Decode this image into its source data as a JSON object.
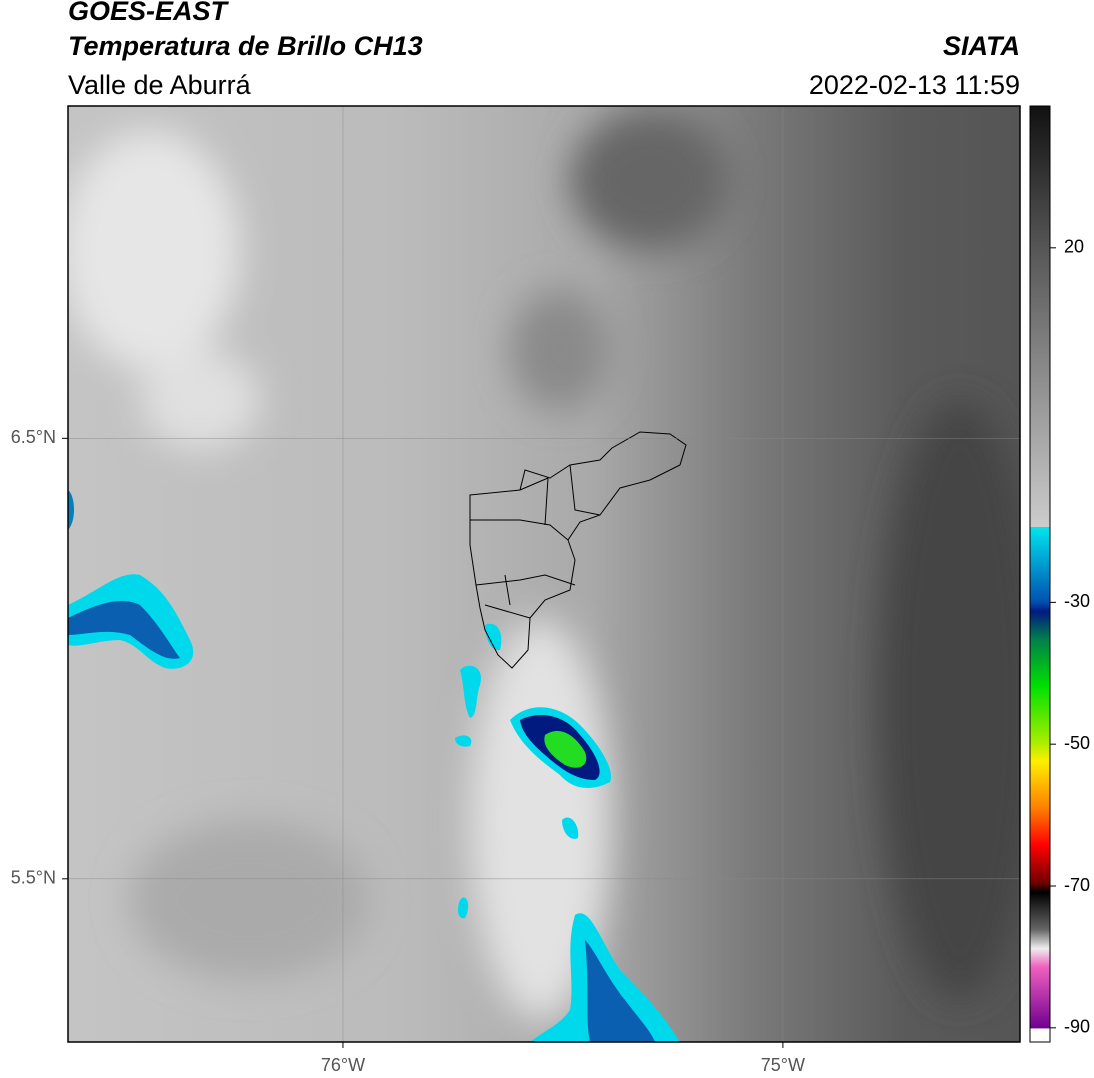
{
  "header": {
    "title": "GOES-EAST",
    "subtitle": "Temperatura de Brillo CH13",
    "region": "Valle de Aburrá",
    "source": "SIATA",
    "datetime": "2022-02-13 11:59"
  },
  "map": {
    "lonlim": [
      -76.625,
      -74.461
    ],
    "latlim": [
      5.1295,
      7.2545
    ],
    "lonticks": [
      {
        "value": -76,
        "label": "76°W"
      },
      {
        "value": -75,
        "label": "75°W"
      }
    ],
    "latticks": [
      {
        "value": 6.5,
        "label": "6.5°N"
      },
      {
        "value": 5.5,
        "label": "5.5°N"
      }
    ]
  },
  "colorbar": {
    "lim": [
      -92,
      40
    ],
    "ticks": [
      20,
      -30,
      -50,
      -70,
      -90
    ]
  }
}
